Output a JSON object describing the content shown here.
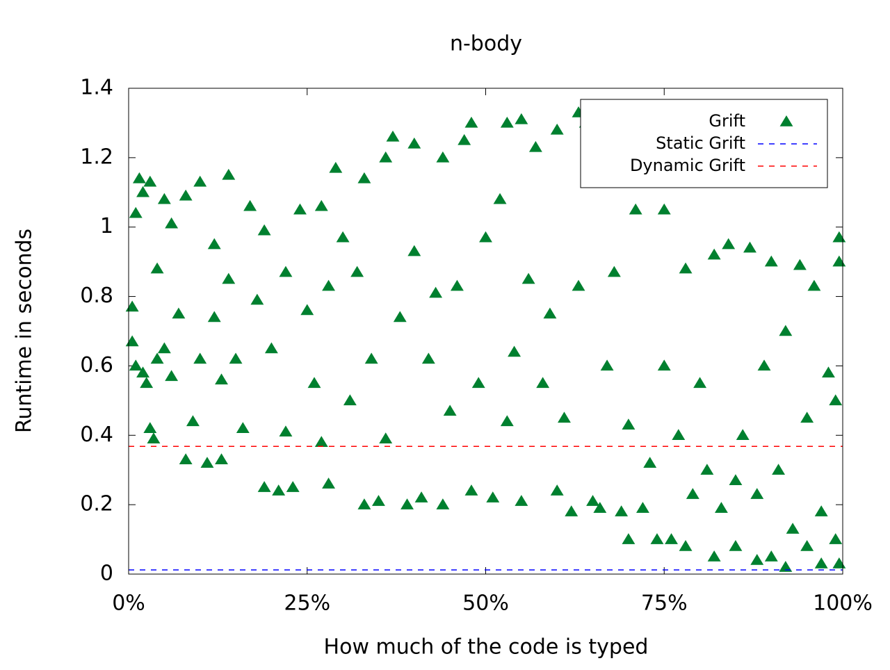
{
  "chart_data": {
    "type": "scatter",
    "title": "n-body",
    "x_label": "How much of the code is typed",
    "y_label": "Runtime in seconds",
    "xlim": [
      0,
      100
    ],
    "ylim": [
      0,
      1.4
    ],
    "xticks": [
      {
        "value": 0,
        "label": "0%"
      },
      {
        "value": 25,
        "label": "25%"
      },
      {
        "value": 50,
        "label": "50%"
      },
      {
        "value": 75,
        "label": "75%"
      },
      {
        "value": 100,
        "label": "100%"
      }
    ],
    "yticks": [
      0,
      0.2,
      0.4,
      0.6,
      0.8,
      1,
      1.2,
      1.4
    ],
    "legend": "top-right",
    "series": [
      {
        "name": "Grift",
        "color": "#00802f",
        "marker": "triangle",
        "x": [
          0.5,
          0.5,
          1,
          1,
          1.5,
          2,
          2,
          2.5,
          3,
          3,
          3.5,
          4,
          4,
          5,
          5,
          6,
          6,
          7,
          8,
          8,
          9,
          10,
          10,
          11,
          12,
          12,
          13,
          13,
          14,
          14,
          15,
          16,
          17,
          18,
          19,
          19,
          20,
          21,
          22,
          22,
          23,
          24,
          25,
          26,
          27,
          27,
          28,
          28,
          29,
          30,
          31,
          32,
          33,
          33,
          34,
          35,
          36,
          36,
          37,
          38,
          39,
          40,
          40,
          41,
          42,
          43,
          44,
          44,
          45,
          46,
          47,
          48,
          48,
          49,
          50,
          51,
          52,
          53,
          53,
          54,
          55,
          55,
          56,
          57,
          58,
          59,
          60,
          60,
          61,
          62,
          63,
          63,
          64,
          65,
          66,
          67,
          68,
          69,
          70,
          70,
          71,
          72,
          73,
          74,
          75,
          75,
          76,
          77,
          78,
          78,
          79,
          80,
          81,
          82,
          82,
          83,
          84,
          85,
          85,
          86,
          87,
          88,
          88,
          89,
          90,
          90,
          91,
          92,
          92,
          93,
          94,
          95,
          95,
          96,
          97,
          97,
          98,
          99,
          99,
          99.5,
          99.5,
          99.5
        ],
        "values": [
          0.67,
          0.77,
          0.6,
          1.04,
          1.14,
          0.58,
          1.1,
          0.55,
          1.13,
          0.42,
          0.39,
          0.88,
          0.62,
          1.08,
          0.65,
          0.57,
          1.01,
          0.75,
          0.33,
          1.09,
          0.44,
          1.13,
          0.62,
          0.32,
          0.74,
          0.95,
          0.33,
          0.56,
          1.15,
          0.85,
          0.62,
          0.42,
          1.06,
          0.79,
          0.25,
          0.99,
          0.65,
          0.24,
          0.41,
          0.87,
          0.25,
          1.05,
          0.76,
          0.55,
          0.38,
          1.06,
          0.26,
          0.83,
          1.17,
          0.97,
          0.5,
          0.87,
          0.2,
          1.14,
          0.62,
          0.21,
          0.39,
          1.2,
          1.26,
          0.74,
          0.2,
          1.24,
          0.93,
          0.22,
          0.62,
          0.81,
          0.2,
          1.2,
          0.47,
          0.83,
          1.25,
          1.3,
          0.24,
          0.55,
          0.97,
          0.22,
          1.08,
          1.3,
          0.44,
          0.64,
          1.31,
          0.21,
          0.85,
          1.23,
          0.55,
          0.75,
          1.28,
          0.24,
          0.45,
          0.18,
          1.33,
          0.83,
          1.3,
          0.21,
          0.19,
          0.6,
          0.87,
          0.18,
          0.1,
          0.43,
          1.05,
          0.19,
          0.32,
          0.1,
          1.05,
          0.6,
          0.1,
          0.4,
          0.08,
          0.88,
          0.23,
          0.55,
          0.3,
          0.05,
          0.92,
          0.19,
          0.95,
          0.08,
          0.27,
          0.4,
          0.94,
          0.04,
          0.23,
          0.6,
          0.05,
          0.9,
          0.3,
          0.02,
          0.7,
          0.13,
          0.89,
          0.08,
          0.45,
          0.83,
          0.03,
          0.18,
          0.58,
          0.5,
          0.1,
          0.97,
          0.03,
          0.9
        ]
      },
      {
        "name": "Static Grift",
        "color": "#0000ff",
        "marker": "dashed-line",
        "value": 0.012
      },
      {
        "name": "Dynamic Grift",
        "color": "#ff0000",
        "marker": "dashed-line",
        "value": 0.368
      }
    ]
  }
}
